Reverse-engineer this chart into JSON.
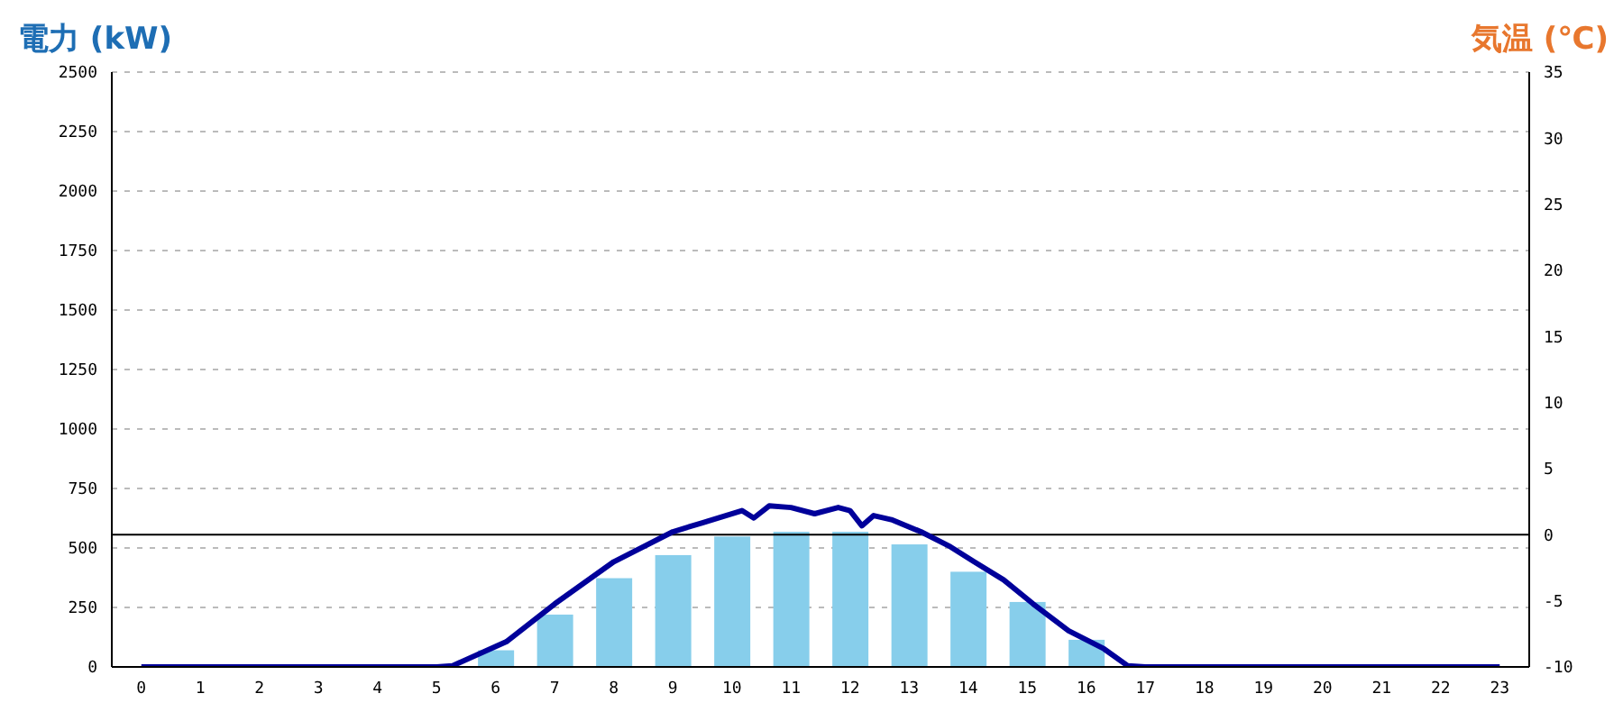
{
  "chart_data": {
    "type": "bar",
    "ylabel": "電力 (kW)",
    "y2label": "気温 (℃)",
    "x": [
      0,
      1,
      2,
      3,
      4,
      5,
      6,
      7,
      8,
      9,
      10,
      11,
      12,
      13,
      14,
      15,
      16,
      17,
      18,
      19,
      20,
      21,
      22,
      23
    ],
    "xlim": [
      -0.5,
      23.5
    ],
    "xticks": [
      0,
      1,
      2,
      3,
      4,
      5,
      6,
      7,
      8,
      9,
      10,
      11,
      12,
      13,
      14,
      15,
      16,
      17,
      18,
      19,
      20,
      21,
      22,
      23
    ],
    "ylim": [
      0,
      2500
    ],
    "yticks": [
      0,
      250,
      500,
      750,
      1000,
      1250,
      1500,
      1750,
      2000,
      2250,
      2500
    ],
    "y2lim": [
      -10,
      35
    ],
    "y2ticks": [
      -10,
      -5,
      0,
      5,
      10,
      15,
      20,
      25,
      30,
      35
    ],
    "grid": "y",
    "legend": false,
    "series": [
      {
        "color": "#87ceeb",
        "values": [
          0,
          0,
          0,
          0,
          0,
          0,
          70,
          220,
          373,
          470,
          548,
          568,
          568,
          515,
          400,
          273,
          114,
          0,
          0,
          0,
          0,
          0,
          0,
          0
        ]
      },
      {
        "type": "line",
        "color": "#00009a",
        "x": [
          0,
          1,
          2,
          3,
          4,
          5,
          5.27,
          6.18,
          7,
          8,
          9,
          9.5,
          10.17,
          10.37,
          10.63,
          11,
          11.4,
          11.8,
          12,
          12.2,
          12.4,
          12.7,
          13.2,
          13.7,
          14.1,
          14.6,
          15.1,
          15.7,
          16.3,
          16.7,
          17,
          18,
          19,
          20,
          21,
          22,
          23
        ],
        "values": [
          0,
          0,
          0,
          0,
          0,
          0,
          5,
          106,
          265,
          442,
          568,
          606,
          657,
          626,
          677,
          670,
          644,
          670,
          657,
          593,
          636,
          619,
          568,
          505,
          442,
          366,
          265,
          152,
          76,
          5,
          0,
          0,
          0,
          0,
          0,
          0,
          0
        ]
      }
    ],
    "ref_lines": [
      {
        "axis": "y2",
        "value": 0,
        "color": "#000000"
      }
    ]
  }
}
